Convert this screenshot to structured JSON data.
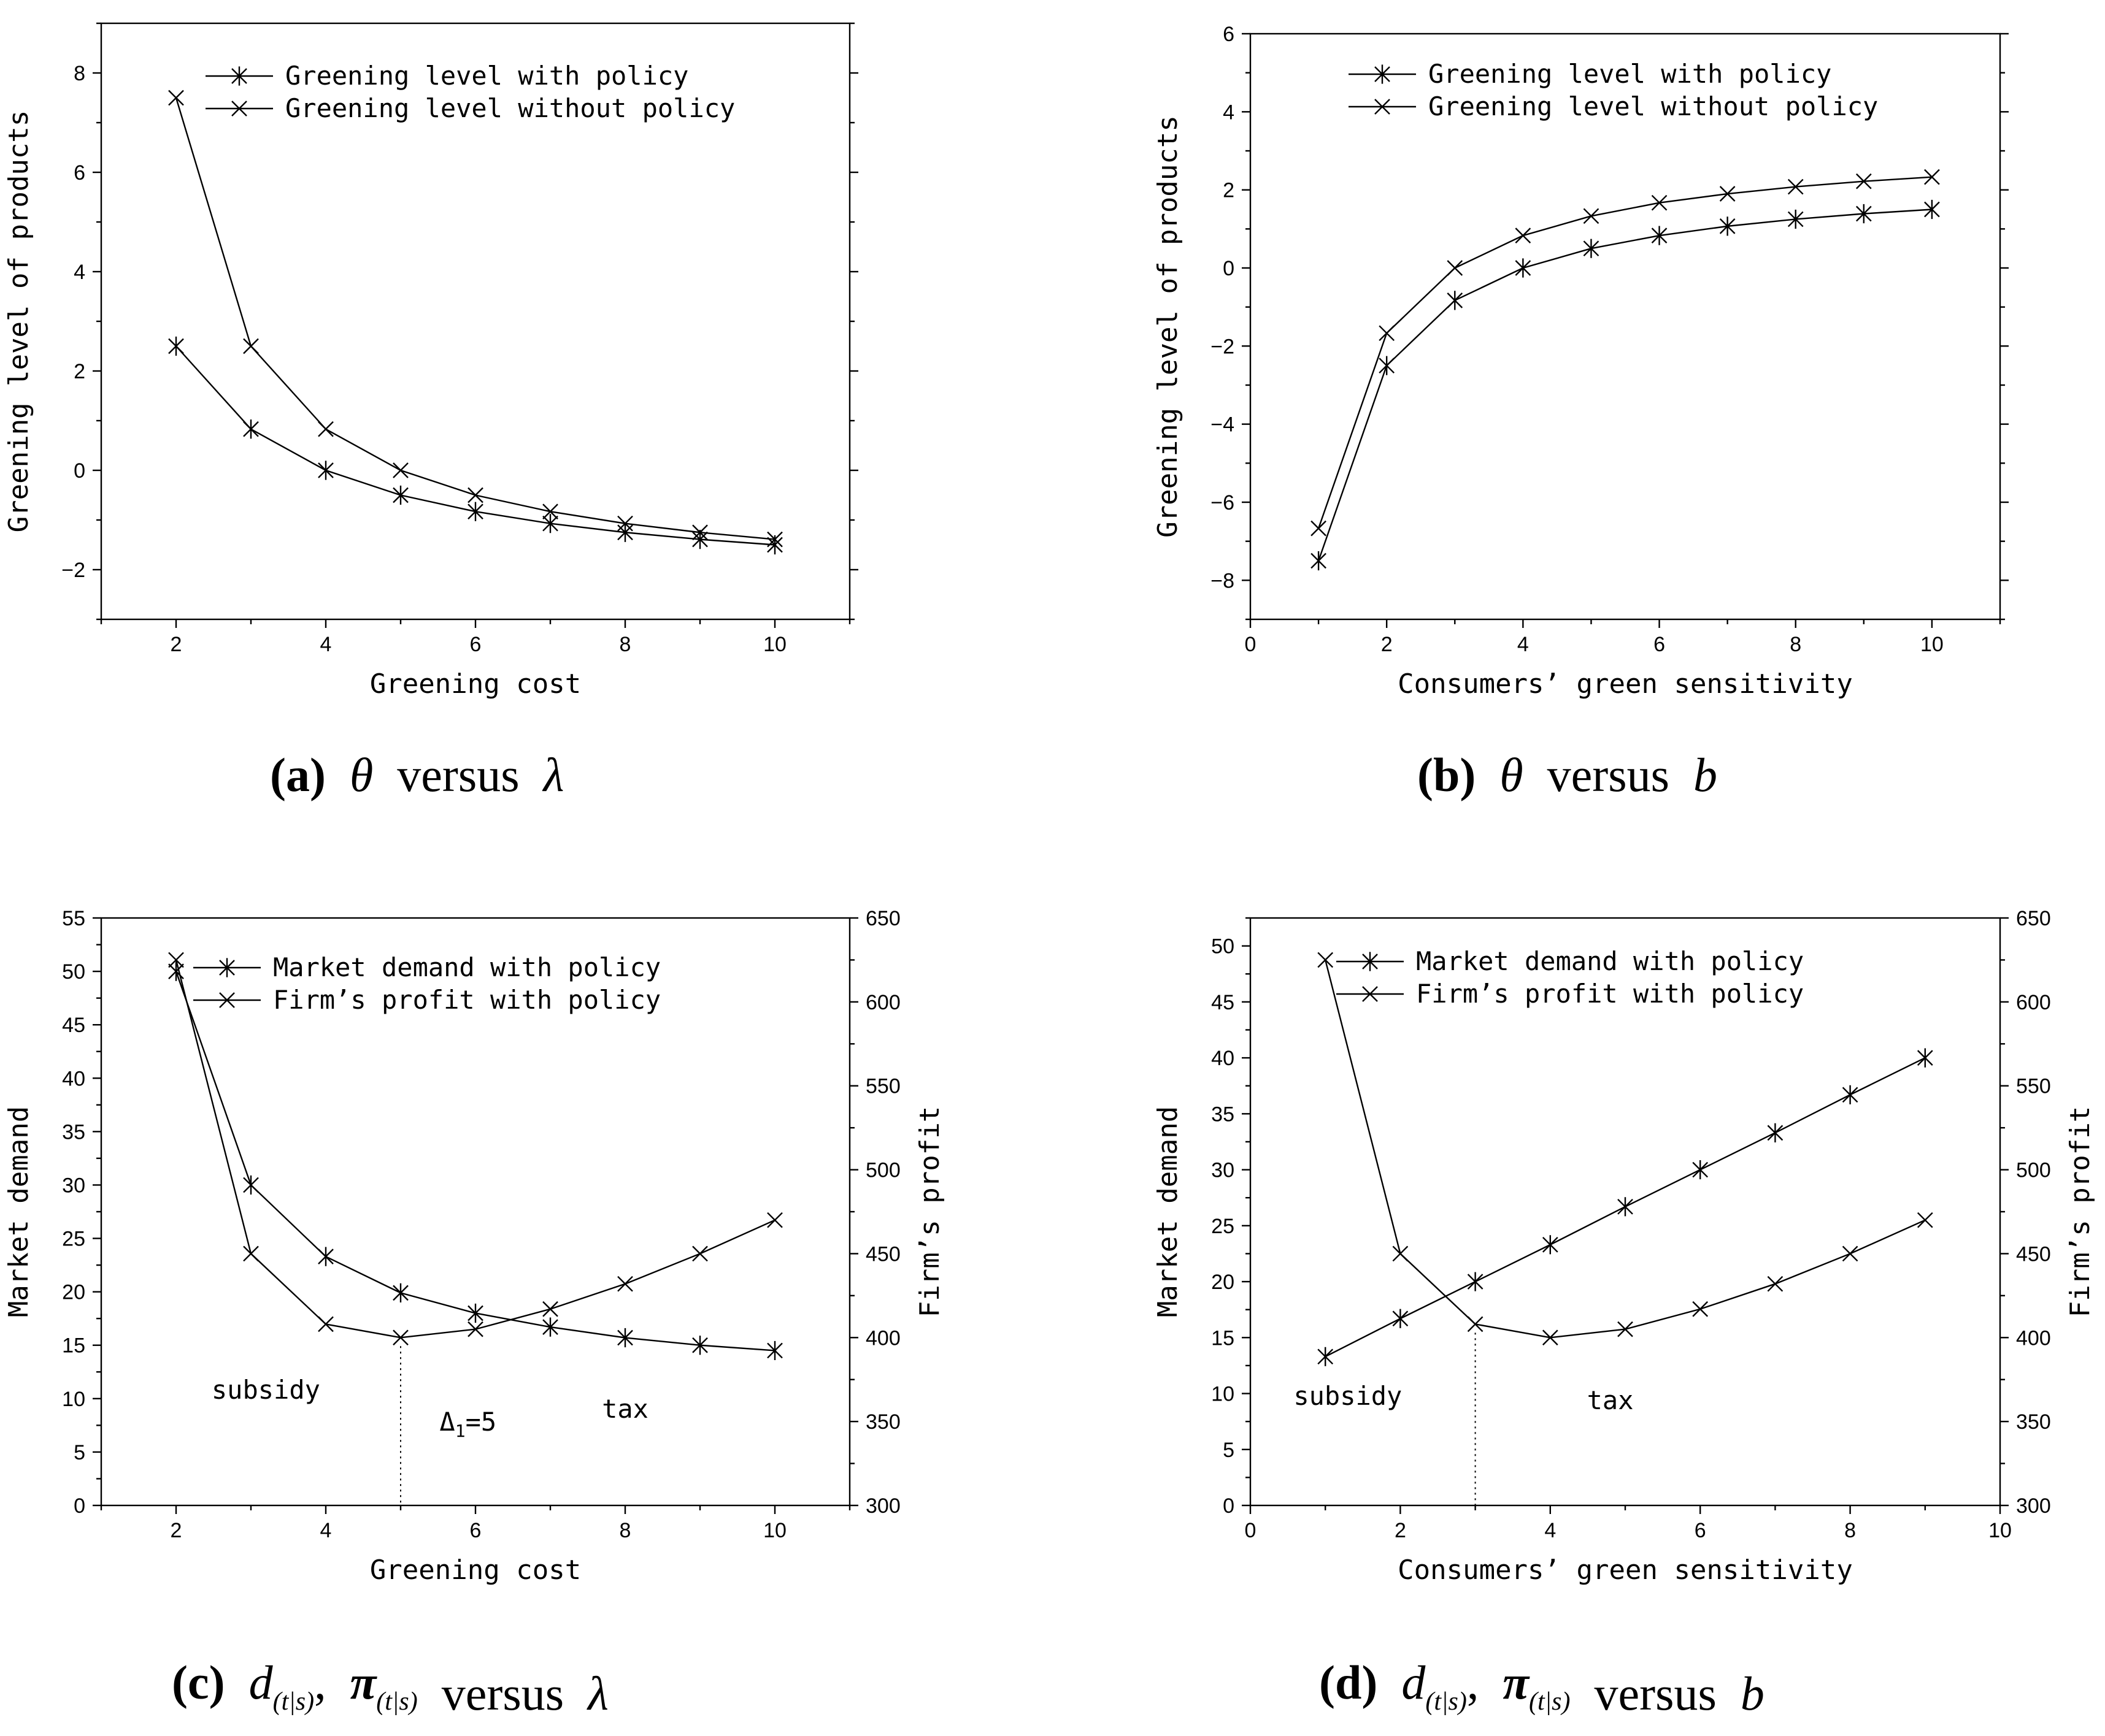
{
  "chart_data": [
    {
      "id": "a",
      "type": "line",
      "caption": {
        "label": "(a)",
        "var": "θ",
        "word": "versus",
        "param": "λ"
      },
      "xlabel": "Greening cost",
      "ylabel": "Greening level of products",
      "xlim": [
        1,
        11
      ],
      "ylim": [
        -3,
        9
      ],
      "xticks": [
        2,
        4,
        6,
        8,
        10
      ],
      "yticks": [
        -2,
        0,
        2,
        4,
        6,
        8
      ],
      "ytick_labels": [
        "−2",
        "0",
        "2",
        "4",
        "6",
        "8"
      ],
      "legend": "top-right",
      "series": [
        {
          "name": "Greening level with policy",
          "marker": "asterisk",
          "axis": "left",
          "x": [
            2,
            3,
            4,
            5,
            6,
            7,
            8,
            9,
            10
          ],
          "values": [
            2.5,
            0.83,
            0,
            -0.5,
            -0.83,
            -1.07,
            -1.25,
            -1.39,
            -1.5
          ]
        },
        {
          "name": "Greening level without policy",
          "marker": "cross",
          "axis": "left",
          "x": [
            2,
            3,
            4,
            5,
            6,
            7,
            8,
            9,
            10
          ],
          "values": [
            7.5,
            2.5,
            0.83,
            0,
            -0.5,
            -0.83,
            -1.07,
            -1.25,
            -1.39
          ]
        }
      ]
    },
    {
      "id": "b",
      "type": "line",
      "caption": {
        "label": "(b)",
        "var": "θ",
        "word": "versus",
        "param": "b"
      },
      "xlabel": "Consumers’ green sensitivity",
      "ylabel": "Greening level of products",
      "xlim": [
        0,
        11
      ],
      "ylim": [
        -9,
        6
      ],
      "xticks": [
        0,
        2,
        4,
        6,
        8,
        10
      ],
      "yticks": [
        -8,
        -6,
        -4,
        -2,
        0,
        2,
        4,
        6
      ],
      "ytick_labels": [
        "−8",
        "−6",
        "−4",
        "−2",
        "0",
        "2",
        "4",
        "6"
      ],
      "legend": "top-right",
      "series": [
        {
          "name": "Greening level with policy",
          "marker": "asterisk",
          "axis": "left",
          "x": [
            1,
            2,
            3,
            4,
            5,
            6,
            7,
            8,
            9,
            10
          ],
          "values": [
            -7.5,
            -2.5,
            -0.83,
            0,
            0.5,
            0.83,
            1.07,
            1.25,
            1.39,
            1.5
          ]
        },
        {
          "name": "Greening level without policy",
          "marker": "cross",
          "axis": "left",
          "x": [
            1,
            2,
            3,
            4,
            5,
            6,
            7,
            8,
            9,
            10
          ],
          "values": [
            -6.67,
            -1.67,
            0,
            0.83,
            1.33,
            1.67,
            1.9,
            2.08,
            2.22,
            2.33
          ]
        }
      ]
    },
    {
      "id": "c",
      "type": "line",
      "caption": {
        "label": "(c)",
        "d": "d",
        "sep": ",",
        "pi": "π",
        "sub": "(t|s)",
        "word": "versus",
        "param": "λ"
      },
      "xlabel": "Greening cost",
      "ylabel": "Market demand",
      "y2label": "Firm’s profit",
      "xlim": [
        1,
        11
      ],
      "ylim": [
        0,
        55
      ],
      "y2lim": [
        300,
        650
      ],
      "xticks": [
        2,
        4,
        6,
        8,
        10
      ],
      "yticks": [
        0,
        5,
        10,
        15,
        20,
        25,
        30,
        35,
        40,
        45,
        50,
        55
      ],
      "y2ticks": [
        300,
        350,
        400,
        450,
        500,
        550,
        600,
        650
      ],
      "legend": "top-right",
      "annotations": [
        {
          "text": "subsidy",
          "x": 3.2,
          "y": 10
        },
        {
          "text": "tax",
          "x": 8,
          "y": 8.2
        }
      ],
      "delta": {
        "sym": "Δ",
        "sub": "1",
        "rest": "=5",
        "x": 5.9,
        "y": 7
      },
      "guide_x": 5,
      "series": [
        {
          "name": "Market demand with policy",
          "marker": "asterisk",
          "axis": "left",
          "x": [
            2,
            3,
            4,
            5,
            6,
            7,
            8,
            9,
            10
          ],
          "values": [
            50,
            30,
            23.3,
            19.9,
            18,
            16.7,
            15.7,
            15,
            14.5
          ]
        },
        {
          "name": "Firm’s profit with policy",
          "marker": "cross",
          "axis": "right",
          "x": [
            2,
            3,
            4,
            5,
            6,
            7,
            8,
            9,
            10
          ],
          "values": [
            625,
            450,
            408,
            400,
            405,
            417,
            432,
            450,
            470
          ]
        }
      ]
    },
    {
      "id": "d",
      "type": "line",
      "caption": {
        "label": "(d)",
        "d": "d",
        "sep": ",",
        "pi": "π",
        "sub": "(t|s)",
        "word": "versus",
        "param": "b"
      },
      "xlabel": "Consumers’ green sensitivity",
      "ylabel": "Market demand",
      "y2label": "Firm’s profit",
      "xlim": [
        0,
        10
      ],
      "ylim": [
        0,
        52.5
      ],
      "y2lim": [
        300,
        650
      ],
      "xticks": [
        0,
        2,
        4,
        6,
        8,
        10
      ],
      "yticks": [
        0,
        5,
        10,
        15,
        20,
        25,
        30,
        35,
        40,
        45,
        50
      ],
      "y2ticks": [
        300,
        350,
        400,
        450,
        500,
        550,
        600,
        650
      ],
      "legend": "top-right",
      "annotations": [
        {
          "text": "subsidy",
          "x": 1.3,
          "y": 9
        },
        {
          "text": "tax",
          "x": 4.8,
          "y": 8.6
        }
      ],
      "guide_x": 3,
      "series": [
        {
          "name": "Market demand with policy",
          "marker": "asterisk",
          "axis": "left",
          "x": [
            1,
            2,
            3,
            4,
            5,
            6,
            7,
            8,
            9
          ],
          "values": [
            13.3,
            16.7,
            20,
            23.3,
            26.7,
            30,
            33.3,
            36.7,
            40
          ]
        },
        {
          "name": "Firm’s profit with policy",
          "marker": "cross",
          "axis": "right",
          "x": [
            1,
            2,
            3,
            4,
            5,
            6,
            7,
            8,
            9
          ],
          "values": [
            625,
            450,
            408,
            400,
            405,
            417,
            432,
            450,
            470
          ]
        }
      ]
    }
  ]
}
